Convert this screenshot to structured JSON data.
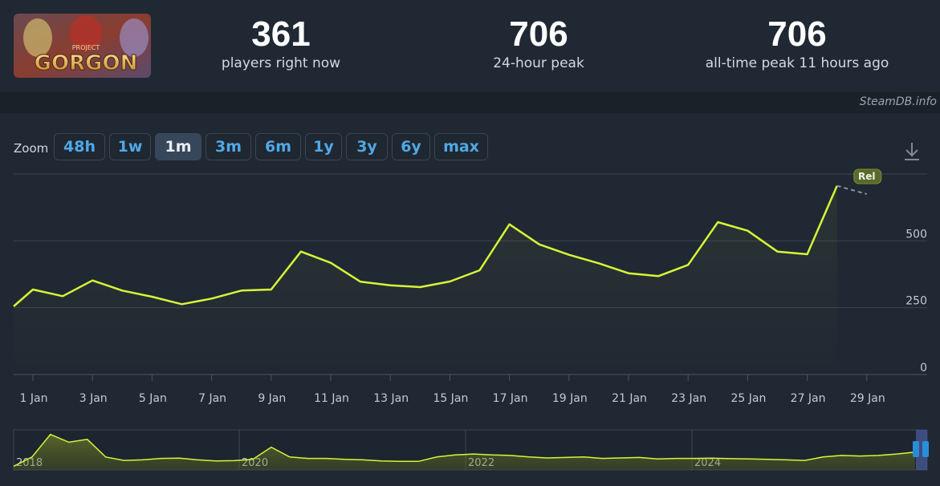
{
  "header": {
    "logo_text": "GORGON",
    "logo_subtext": "PROJECT",
    "stats": [
      {
        "value": "361",
        "label": "players right now"
      },
      {
        "value": "706",
        "label": "24-hour peak"
      },
      {
        "value": "706",
        "label": "all-time peak 11 hours ago"
      }
    ],
    "credit": "SteamDB.info"
  },
  "zoom": {
    "label": "Zoom",
    "options": [
      "48h",
      "1w",
      "1m",
      "3m",
      "6m",
      "1y",
      "3y",
      "6y",
      "max"
    ],
    "active": "1m"
  },
  "colors": {
    "line": "#d7f537",
    "background": "#1b2129",
    "panel": "#202833",
    "button_text": "#4fa8e6"
  },
  "chart_data": {
    "type": "line",
    "x_unit": "day",
    "x": [
      "30 Dec",
      "31 Dec",
      "1 Jan",
      "2 Jan",
      "3 Jan",
      "4 Jan",
      "5 Jan",
      "6 Jan",
      "7 Jan",
      "8 Jan",
      "9 Jan",
      "10 Jan",
      "11 Jan",
      "12 Jan",
      "13 Jan",
      "14 Jan",
      "15 Jan",
      "16 Jan",
      "17 Jan",
      "18 Jan",
      "19 Jan",
      "20 Jan",
      "21 Jan",
      "22 Jan",
      "23 Jan",
      "24 Jan",
      "25 Jan",
      "26 Jan",
      "27 Jan",
      "28 Jan",
      "29 Jan"
    ],
    "values": [
      255,
      255,
      318,
      293,
      352,
      314,
      291,
      263,
      284,
      314,
      318,
      460,
      418,
      347,
      334,
      327,
      348,
      390,
      562,
      487,
      448,
      416,
      379,
      368,
      410,
      570,
      538,
      460,
      450,
      706,
      null
    ],
    "forecast": {
      "x": [
        "28 Jan",
        "29 Jan"
      ],
      "values": [
        706,
        675
      ],
      "label": "Rel"
    },
    "x_ticks": [
      "1 Jan",
      "3 Jan",
      "5 Jan",
      "7 Jan",
      "9 Jan",
      "11 Jan",
      "13 Jan",
      "15 Jan",
      "17 Jan",
      "19 Jan",
      "21 Jan",
      "23 Jan",
      "25 Jan",
      "27 Jan",
      "29 Jan"
    ],
    "y_ticks": [
      0,
      250,
      500
    ],
    "ylim": [
      0,
      750
    ],
    "grid": true,
    "navigator": {
      "year_labels": [
        "2018",
        "2020",
        "2022",
        "2024"
      ],
      "values": [
        10,
        200,
        660,
        500,
        560,
        200,
        130,
        140,
        170,
        175,
        140,
        120,
        125,
        150,
        400,
        200,
        170,
        170,
        150,
        140,
        120,
        110,
        110,
        200,
        240,
        260,
        240,
        230,
        200,
        180,
        190,
        200,
        170,
        180,
        190,
        160,
        170,
        170,
        175,
        165,
        160,
        150,
        140,
        130,
        200,
        230,
        220,
        230,
        260,
        300
      ]
    }
  }
}
